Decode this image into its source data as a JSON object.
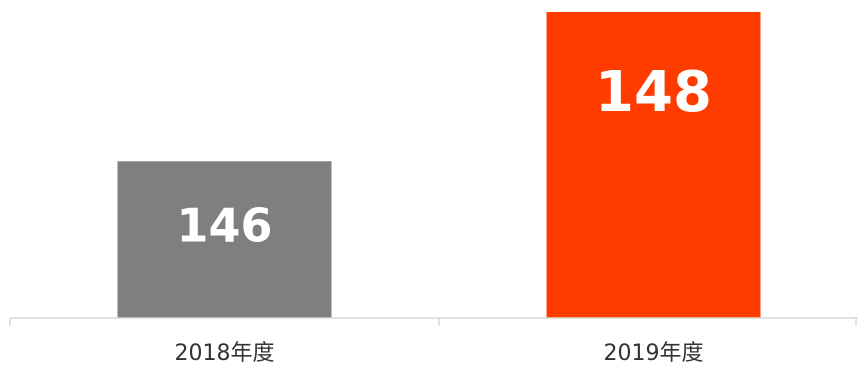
{
  "chart_data": {
    "type": "bar",
    "categories": [
      "2018年度",
      "2019年度"
    ],
    "values": [
      146,
      148
    ],
    "colors": [
      "#7f7f7f",
      "#ff3c00"
    ],
    "data_labels": [
      "146",
      "148"
    ],
    "title": "",
    "xlabel": "",
    "ylabel": "",
    "ylim": [
      143.9,
      148
    ],
    "grid": false,
    "legend": "none"
  }
}
